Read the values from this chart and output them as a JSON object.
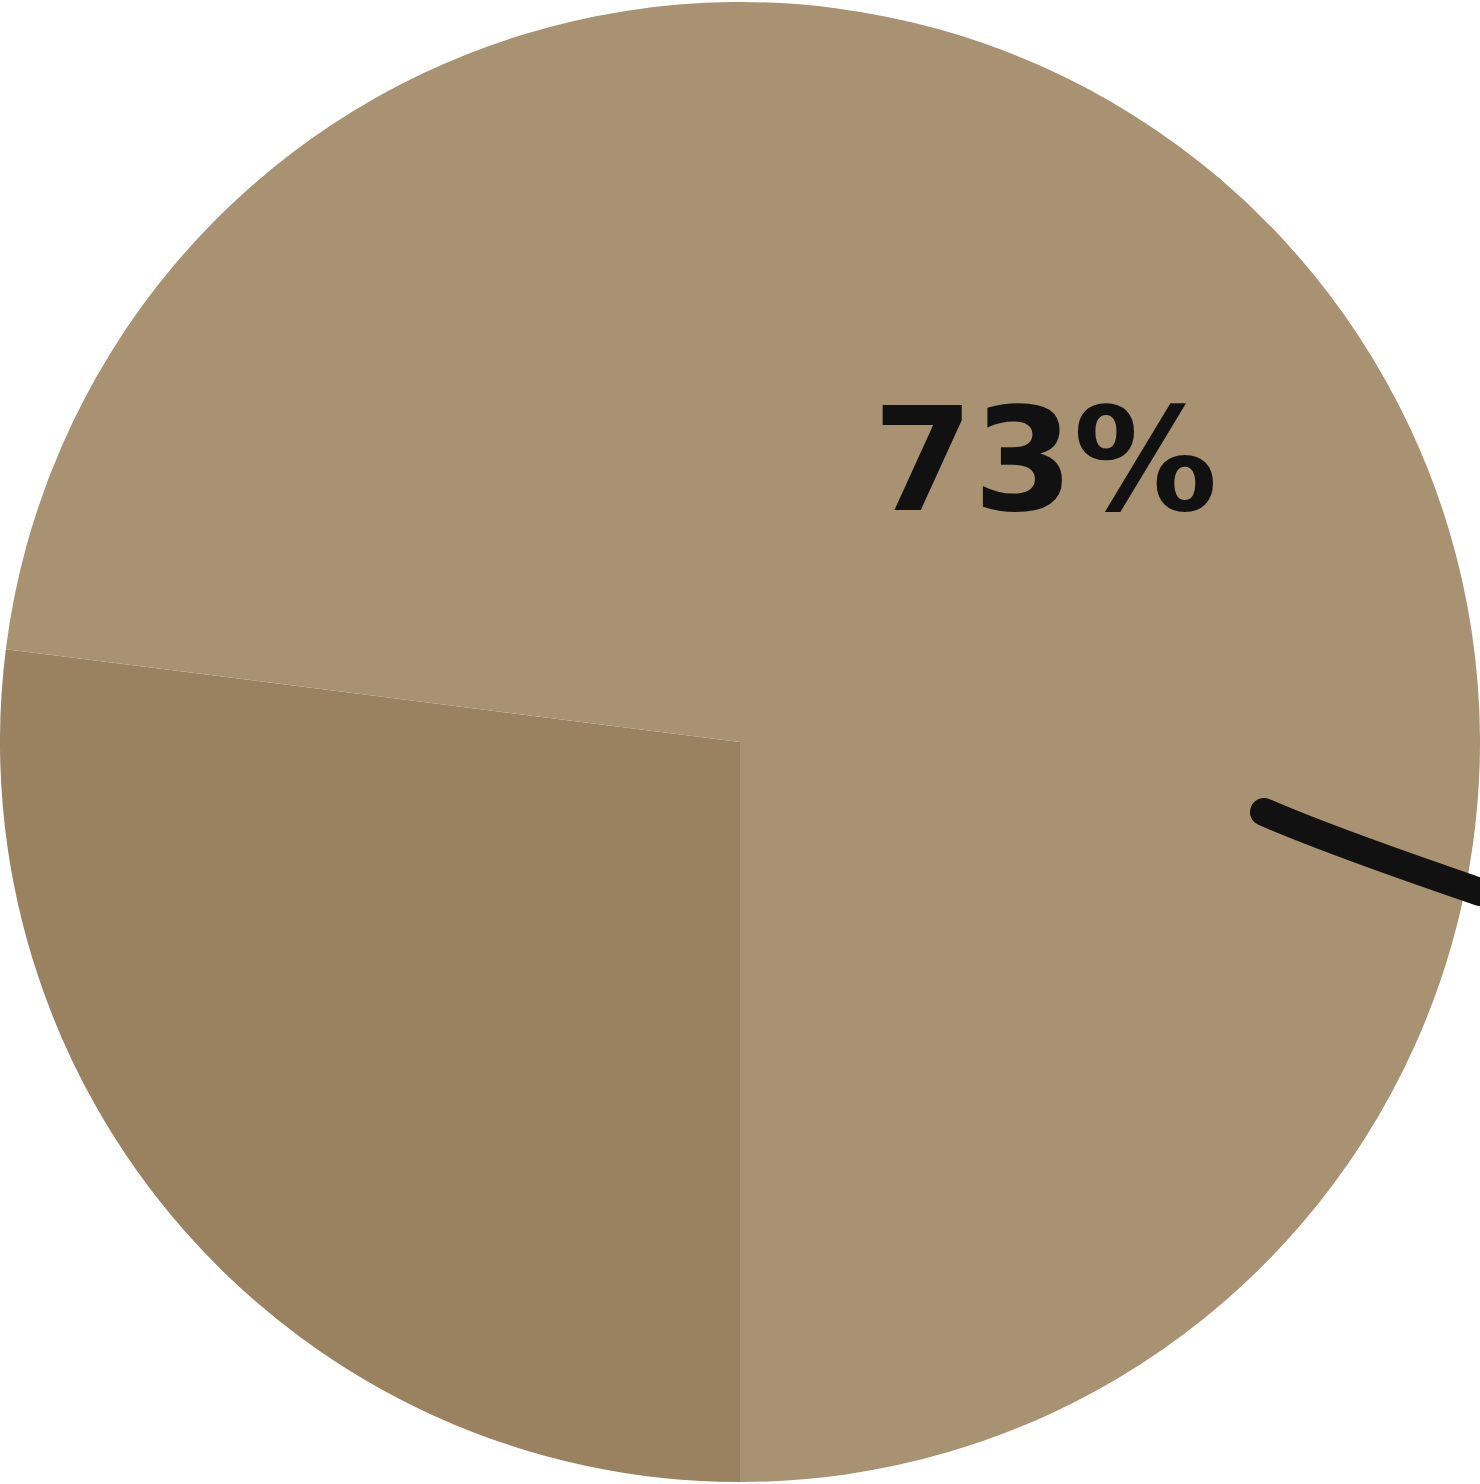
{
  "chart_data": {
    "type": "pie",
    "categories": [
      null,
      null
    ],
    "values": [
      27,
      73
    ],
    "colors": [
      "#9a8160",
      "#a89272"
    ],
    "value_labels": [
      null,
      "73%"
    ],
    "legend": false
  }
}
